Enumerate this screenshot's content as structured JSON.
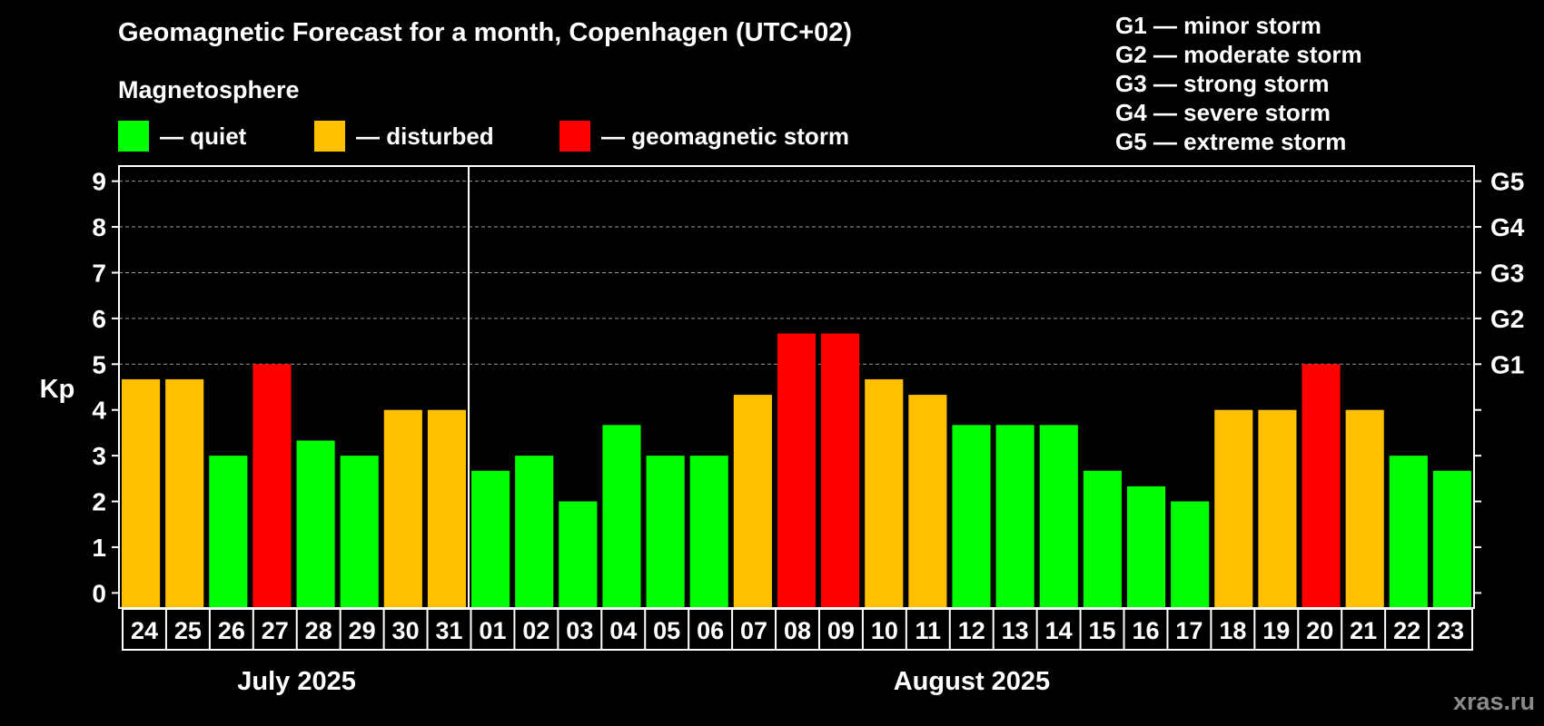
{
  "title": "Geomagnetic Forecast for a month, Copenhagen (UTC+02)",
  "subtitle": "Magnetosphere",
  "legend": [
    {
      "label": "— quiet",
      "color": "#00ff00"
    },
    {
      "label": "— disturbed",
      "color": "#ffc000"
    },
    {
      "label": "— geomagnetic storm",
      "color": "#ff0000"
    }
  ],
  "g_scale": [
    "G1 — minor storm",
    "G2 — moderate storm",
    "G3 — strong storm",
    "G4 — severe storm",
    "G5 — extreme storm"
  ],
  "watermark": "xras.ru",
  "chart_data": {
    "type": "bar",
    "ylabel": "Kp",
    "ylim": [
      -0.33,
      9.33
    ],
    "yticks": [
      "0",
      "1",
      "2",
      "3",
      "4",
      "5",
      "6",
      "7",
      "8",
      "9"
    ],
    "right_ticks": [
      {
        "kp": 5,
        "label": "G1"
      },
      {
        "kp": 6,
        "label": "G2"
      },
      {
        "kp": 7,
        "label": "G3"
      },
      {
        "kp": 8,
        "label": "G4"
      },
      {
        "kp": 9,
        "label": "G5"
      }
    ],
    "grid": "dashed horizontal at Kp 5–9",
    "months": [
      {
        "label": "July 2025",
        "start": 0,
        "count": 8
      },
      {
        "label": "August 2025",
        "start": 8,
        "count": 23
      }
    ],
    "categories": [
      "24",
      "25",
      "26",
      "27",
      "28",
      "29",
      "30",
      "31",
      "01",
      "02",
      "03",
      "04",
      "05",
      "06",
      "07",
      "08",
      "09",
      "10",
      "11",
      "12",
      "13",
      "14",
      "15",
      "16",
      "17",
      "18",
      "19",
      "20",
      "21",
      "22",
      "23"
    ],
    "values": [
      4.67,
      4.67,
      3.0,
      5.0,
      3.33,
      3.0,
      4.0,
      4.0,
      2.67,
      3.0,
      2.0,
      3.67,
      3.0,
      3.0,
      4.33,
      5.67,
      5.67,
      4.67,
      4.33,
      3.67,
      3.67,
      3.67,
      2.67,
      2.33,
      2.0,
      4.0,
      4.0,
      5.0,
      4.0,
      3.0,
      2.67
    ],
    "status": [
      "disturbed",
      "disturbed",
      "quiet",
      "storm",
      "quiet",
      "quiet",
      "disturbed",
      "disturbed",
      "quiet",
      "quiet",
      "quiet",
      "quiet",
      "quiet",
      "quiet",
      "disturbed",
      "storm",
      "storm",
      "disturbed",
      "disturbed",
      "quiet",
      "quiet",
      "quiet",
      "quiet",
      "quiet",
      "quiet",
      "disturbed",
      "disturbed",
      "storm",
      "disturbed",
      "quiet",
      "quiet"
    ],
    "status_colors": {
      "quiet": "#00ff00",
      "disturbed": "#ffc000",
      "storm": "#ff0000"
    }
  }
}
